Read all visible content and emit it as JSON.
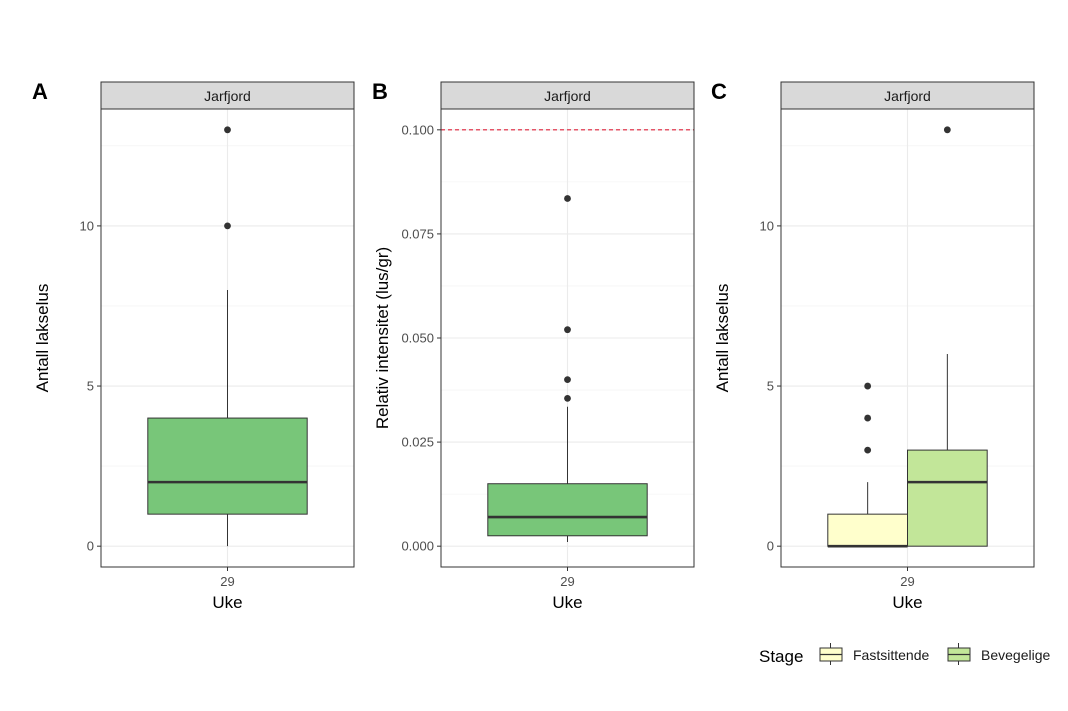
{
  "chart_data": [
    {
      "tag": "A",
      "type": "box",
      "strip": "Jarfjord",
      "xlabel": "Uke",
      "ylabel": "Antall lakselus",
      "categories": [
        "29"
      ],
      "yticks": [
        0,
        5,
        10
      ],
      "ytick_labels": [
        "0",
        "5",
        "10"
      ],
      "ylim": [
        -0.65,
        13.65
      ],
      "boxes": [
        {
          "stage": "",
          "color": "#78c679",
          "min": 0,
          "q1": 1,
          "median": 2,
          "q3": 4,
          "max": 8,
          "outliers": [
            10,
            13
          ]
        }
      ]
    },
    {
      "tag": "B",
      "type": "box",
      "strip": "Jarfjord",
      "xlabel": "Uke",
      "ylabel": "Relativ intensitet (lus/gr)",
      "categories": [
        "29"
      ],
      "yticks": [
        0,
        0.025,
        0.05,
        0.075,
        0.1
      ],
      "ytick_labels": [
        "0.000",
        "0.025",
        "0.050",
        "0.075",
        "0.100"
      ],
      "ylim": [
        -0.005,
        0.105
      ],
      "reference_line": {
        "y": 0.1,
        "color": "#e0203a",
        "style": "dashed"
      },
      "boxes": [
        {
          "stage": "",
          "color": "#78c679",
          "min": 0.001,
          "q1": 0.0025,
          "median": 0.007,
          "q3": 0.015,
          "max": 0.0335,
          "outliers": [
            0.0355,
            0.04,
            0.052,
            0.0835
          ]
        }
      ]
    },
    {
      "tag": "C",
      "type": "box",
      "strip": "Jarfjord",
      "xlabel": "Uke",
      "ylabel": "Antall lakselus",
      "categories": [
        "29"
      ],
      "yticks": [
        0,
        5,
        10
      ],
      "ytick_labels": [
        "0",
        "5",
        "10"
      ],
      "ylim": [
        -0.65,
        13.65
      ],
      "boxes": [
        {
          "stage": "Fastsittende",
          "color": "#ffffcc",
          "min": 0,
          "q1": 0,
          "median": 0,
          "q3": 1,
          "max": 2,
          "outliers": [
            3,
            4,
            5
          ]
        },
        {
          "stage": "Bevegelige",
          "color": "#c2e699",
          "min": 0,
          "q1": 0,
          "median": 2,
          "q3": 3,
          "max": 6,
          "outliers": [
            13
          ]
        }
      ]
    }
  ],
  "legend": {
    "title": "Stage",
    "entries": [
      {
        "label": "Fastsittende",
        "color": "#ffffcc"
      },
      {
        "label": "Bevegelige",
        "color": "#c2e699"
      }
    ]
  }
}
